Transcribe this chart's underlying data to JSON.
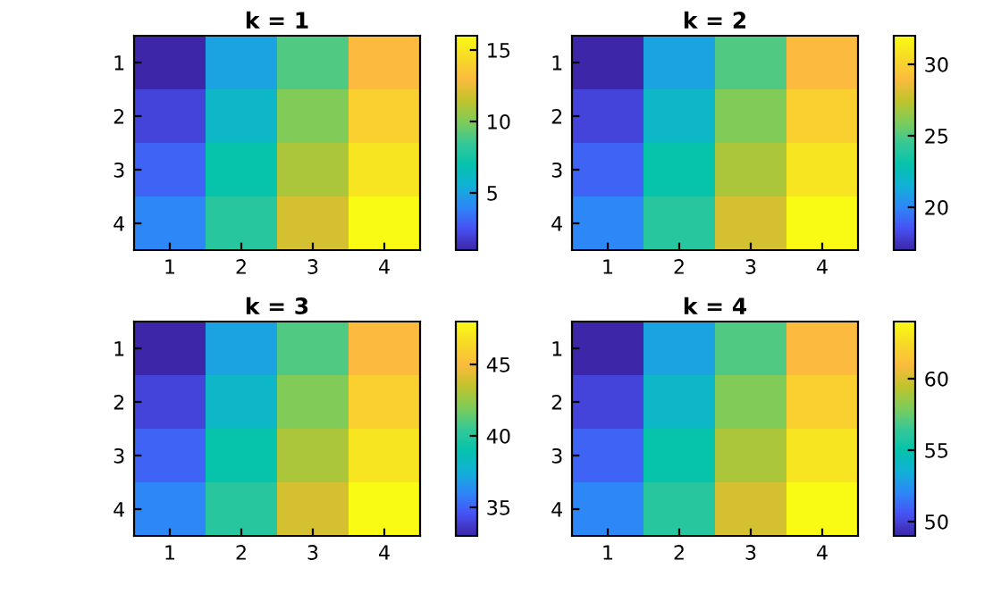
{
  "chart_data": [
    {
      "type": "heatmap",
      "title": "k = 1",
      "categories": [
        "1",
        "2",
        "3",
        "4"
      ],
      "y_categories": [
        "1",
        "2",
        "3",
        "4"
      ],
      "cells": [
        [
          1,
          5,
          9,
          13
        ],
        [
          2,
          6,
          10,
          14
        ],
        [
          3,
          7,
          11,
          15
        ],
        [
          4,
          8,
          12,
          16
        ]
      ],
      "clim": [
        1,
        16
      ],
      "cticks": [
        5,
        10,
        15
      ]
    },
    {
      "type": "heatmap",
      "title": "k = 2",
      "categories": [
        "1",
        "2",
        "3",
        "4"
      ],
      "y_categories": [
        "1",
        "2",
        "3",
        "4"
      ],
      "cells": [
        [
          17,
          21,
          25,
          29
        ],
        [
          18,
          22,
          26,
          30
        ],
        [
          19,
          23,
          27,
          31
        ],
        [
          20,
          24,
          28,
          32
        ]
      ],
      "clim": [
        17,
        32
      ],
      "cticks": [
        20,
        25,
        30
      ]
    },
    {
      "type": "heatmap",
      "title": "k = 3",
      "categories": [
        "1",
        "2",
        "3",
        "4"
      ],
      "y_categories": [
        "1",
        "2",
        "3",
        "4"
      ],
      "cells": [
        [
          33,
          37,
          41,
          45
        ],
        [
          34,
          38,
          42,
          46
        ],
        [
          35,
          39,
          43,
          47
        ],
        [
          36,
          40,
          44,
          48
        ]
      ],
      "clim": [
        33,
        48
      ],
      "cticks": [
        35,
        40,
        45
      ]
    },
    {
      "type": "heatmap",
      "title": "k = 4",
      "categories": [
        "1",
        "2",
        "3",
        "4"
      ],
      "y_categories": [
        "1",
        "2",
        "3",
        "4"
      ],
      "cells": [
        [
          49,
          53,
          57,
          61
        ],
        [
          50,
          54,
          58,
          62
        ],
        [
          51,
          55,
          59,
          63
        ],
        [
          52,
          56,
          60,
          64
        ]
      ],
      "clim": [
        49,
        64
      ],
      "cticks": [
        50,
        55,
        60
      ]
    }
  ]
}
